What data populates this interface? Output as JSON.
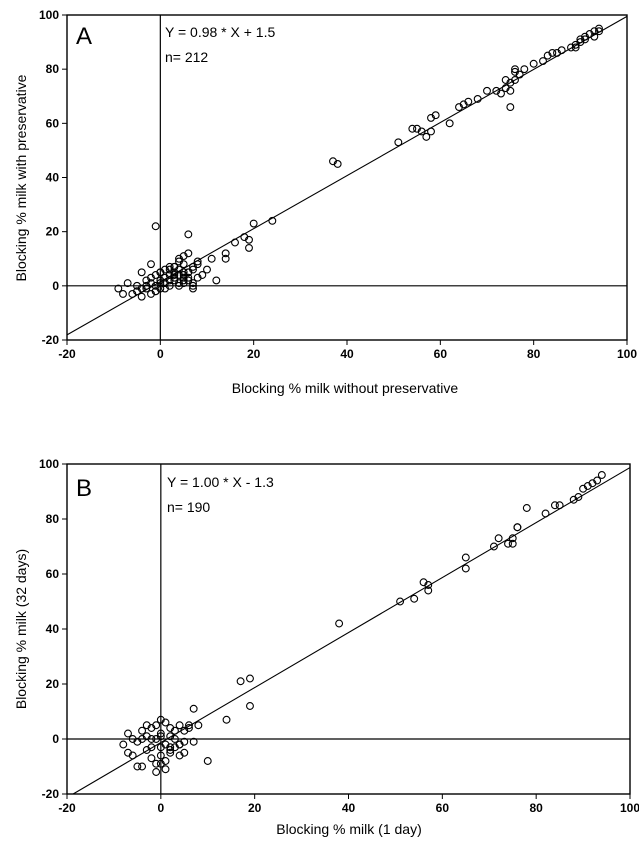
{
  "chart_data": [
    {
      "type": "scatter",
      "panel_label": "A",
      "xlabel": "Blocking % milk without preservative",
      "ylabel": "Blocking % milk with preservative",
      "xlim": [
        -20,
        100
      ],
      "ylim": [
        -20,
        100
      ],
      "xticks": [
        "-20",
        "0",
        "20",
        "40",
        "60",
        "80",
        "100"
      ],
      "yticks": [
        "-20",
        "0",
        "20",
        "40",
        "60",
        "80",
        "100"
      ],
      "annotations": [
        "Y = 0.98 * X + 1.5",
        "n= 212"
      ],
      "regression": {
        "slope": 0.98,
        "intercept": 1.5
      },
      "series": [
        {
          "x": [
            -9,
            -8,
            -7,
            -6,
            -5,
            -4,
            -4,
            -3,
            -3,
            -2,
            -2,
            -1,
            -1,
            -1,
            0,
            0,
            0,
            1,
            1,
            1,
            2,
            2,
            2,
            3,
            3,
            3,
            4,
            4,
            4,
            5,
            5,
            6,
            6,
            7,
            7,
            8,
            9,
            10,
            11,
            12,
            -4,
            -3,
            -2,
            -1,
            0,
            1,
            2,
            3,
            4,
            5,
            6,
            7,
            8,
            3,
            4,
            5,
            2,
            6,
            -5,
            -2,
            0,
            6,
            4,
            5,
            14,
            14,
            16,
            18,
            19,
            19,
            20,
            24,
            -1,
            7,
            3,
            5,
            7,
            8,
            5,
            6,
            37,
            38,
            51,
            54,
            55,
            56,
            57,
            58,
            58,
            59,
            62,
            64,
            65,
            66,
            68,
            70,
            72,
            73,
            74,
            75,
            75,
            76,
            76,
            77,
            78,
            80,
            82,
            83,
            84,
            85,
            86,
            88,
            89,
            90,
            90,
            91,
            91,
            92,
            93,
            93,
            94,
            94,
            75,
            76,
            74,
            89
          ],
          "y": [
            -1,
            -3,
            1,
            -3,
            -2,
            -4,
            5,
            -1,
            2,
            -3,
            1,
            -2,
            0,
            4,
            -1,
            2,
            5,
            1,
            3,
            6,
            0,
            4,
            7,
            2,
            5,
            3,
            1,
            6,
            4,
            2,
            8,
            3,
            5,
            7,
            1,
            8,
            4,
            6,
            10,
            2,
            -1,
            0,
            3,
            -2,
            1,
            -1,
            2,
            4,
            0,
            3,
            5,
            6,
            9,
            7,
            9,
            11,
            6,
            12,
            0,
            8,
            5,
            19,
            10,
            5,
            12,
            10,
            16,
            18,
            17,
            14,
            23,
            24,
            22,
            0,
            7,
            4,
            -1,
            3,
            1,
            2,
            46,
            45,
            53,
            58,
            58,
            57,
            55,
            62,
            57,
            63,
            60,
            66,
            67,
            68,
            69,
            72,
            72,
            71,
            73,
            72,
            75,
            76,
            80,
            78,
            80,
            82,
            83,
            85,
            86,
            86,
            87,
            88,
            88,
            90,
            91,
            91,
            92,
            93,
            92,
            94,
            94,
            95,
            66,
            79,
            76,
            89
          ]
        }
      ]
    },
    {
      "type": "scatter",
      "panel_label": "B",
      "xlabel": "Blocking % milk (1 day)",
      "ylabel": "Blocking % milk (32 days)",
      "xlim": [
        -20,
        100
      ],
      "ylim": [
        -20,
        100
      ],
      "xticks": [
        "-20",
        "0",
        "20",
        "40",
        "60",
        "80",
        "100"
      ],
      "yticks": [
        "-20",
        "0",
        "20",
        "40",
        "60",
        "80",
        "100"
      ],
      "annotations": [
        "Y = 1.00 * X - 1.3",
        "n= 190"
      ],
      "regression": {
        "slope": 1.0,
        "intercept": -1.3
      },
      "series": [
        {
          "x": [
            -8,
            -7,
            -7,
            -6,
            -5,
            -5,
            -4,
            -4,
            -3,
            -3,
            -2,
            -2,
            -1,
            -1,
            0,
            0,
            0,
            1,
            1,
            2,
            2,
            3,
            3,
            4,
            4,
            5,
            5,
            6,
            7,
            7,
            8,
            10,
            -1,
            0,
            1,
            2,
            3,
            4,
            5,
            6,
            -3,
            -2,
            0,
            2,
            4,
            -6,
            -4,
            -2,
            0,
            2,
            14,
            17,
            19,
            19,
            -1,
            1,
            38,
            51,
            54,
            56,
            57,
            57,
            65,
            65,
            71,
            72,
            74,
            75,
            75,
            76,
            76,
            78,
            82,
            84,
            85,
            88,
            89,
            90,
            91,
            92,
            93,
            94
          ],
          "y": [
            -2,
            2,
            -5,
            0,
            -1,
            -10,
            3,
            -10,
            1,
            5,
            -7,
            4,
            -9,
            5,
            -3,
            2,
            7,
            -2,
            6,
            -4,
            4,
            -3,
            3,
            -6,
            5,
            -1,
            -5,
            5,
            11,
            -1,
            5,
            -8,
            -12,
            -9,
            -11,
            -5,
            0,
            -2,
            3,
            4,
            -4,
            0,
            -6,
            1,
            -2,
            -6,
            0,
            -3,
            1,
            -3,
            7,
            21,
            22,
            12,
            0,
            -8,
            42,
            50,
            51,
            57,
            54,
            56,
            62,
            66,
            70,
            73,
            71,
            71,
            73,
            77,
            77,
            84,
            82,
            85,
            85,
            87,
            88,
            91,
            92,
            93,
            94,
            96
          ]
        }
      ]
    }
  ]
}
